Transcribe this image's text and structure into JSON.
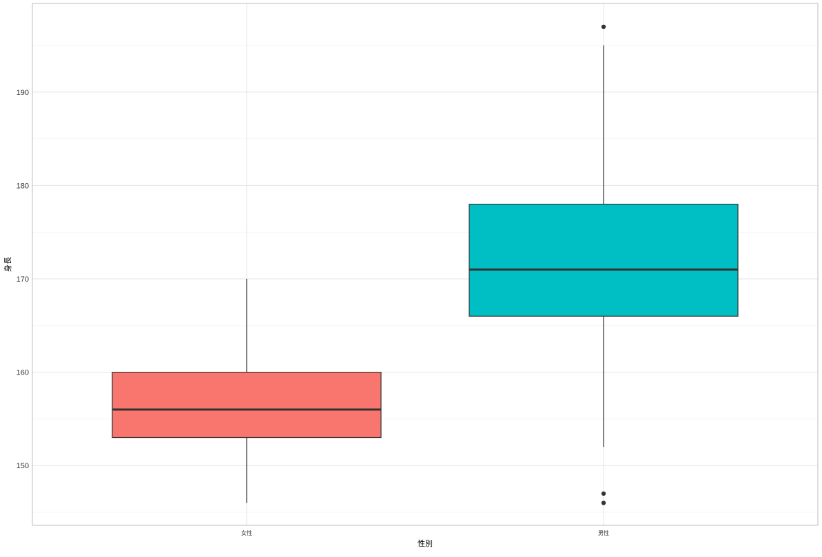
{
  "chart_data": {
    "type": "boxplot",
    "title": "",
    "xlabel": "性別",
    "ylabel": "身長",
    "ylim": [
      143.6,
      199.5
    ],
    "yticks": [
      150,
      160,
      170,
      180,
      190
    ],
    "ytick_labels": [
      "150",
      "160",
      "170",
      "180",
      "190"
    ],
    "grid": true,
    "legend": "none",
    "categories": [
      "女性",
      "男性"
    ],
    "boxes": [
      {
        "category": "女性",
        "whisker_low": 146,
        "q1": 153,
        "median": 156,
        "q3": 160,
        "whisker_high": 170,
        "outliers": [],
        "color": "#F8766D"
      },
      {
        "category": "男性",
        "whisker_low": 152,
        "q1": 166,
        "median": 171,
        "q3": 178,
        "whisker_high": 195,
        "outliers": [
          197,
          147,
          146
        ],
        "color": "#00BFC4"
      }
    ]
  }
}
